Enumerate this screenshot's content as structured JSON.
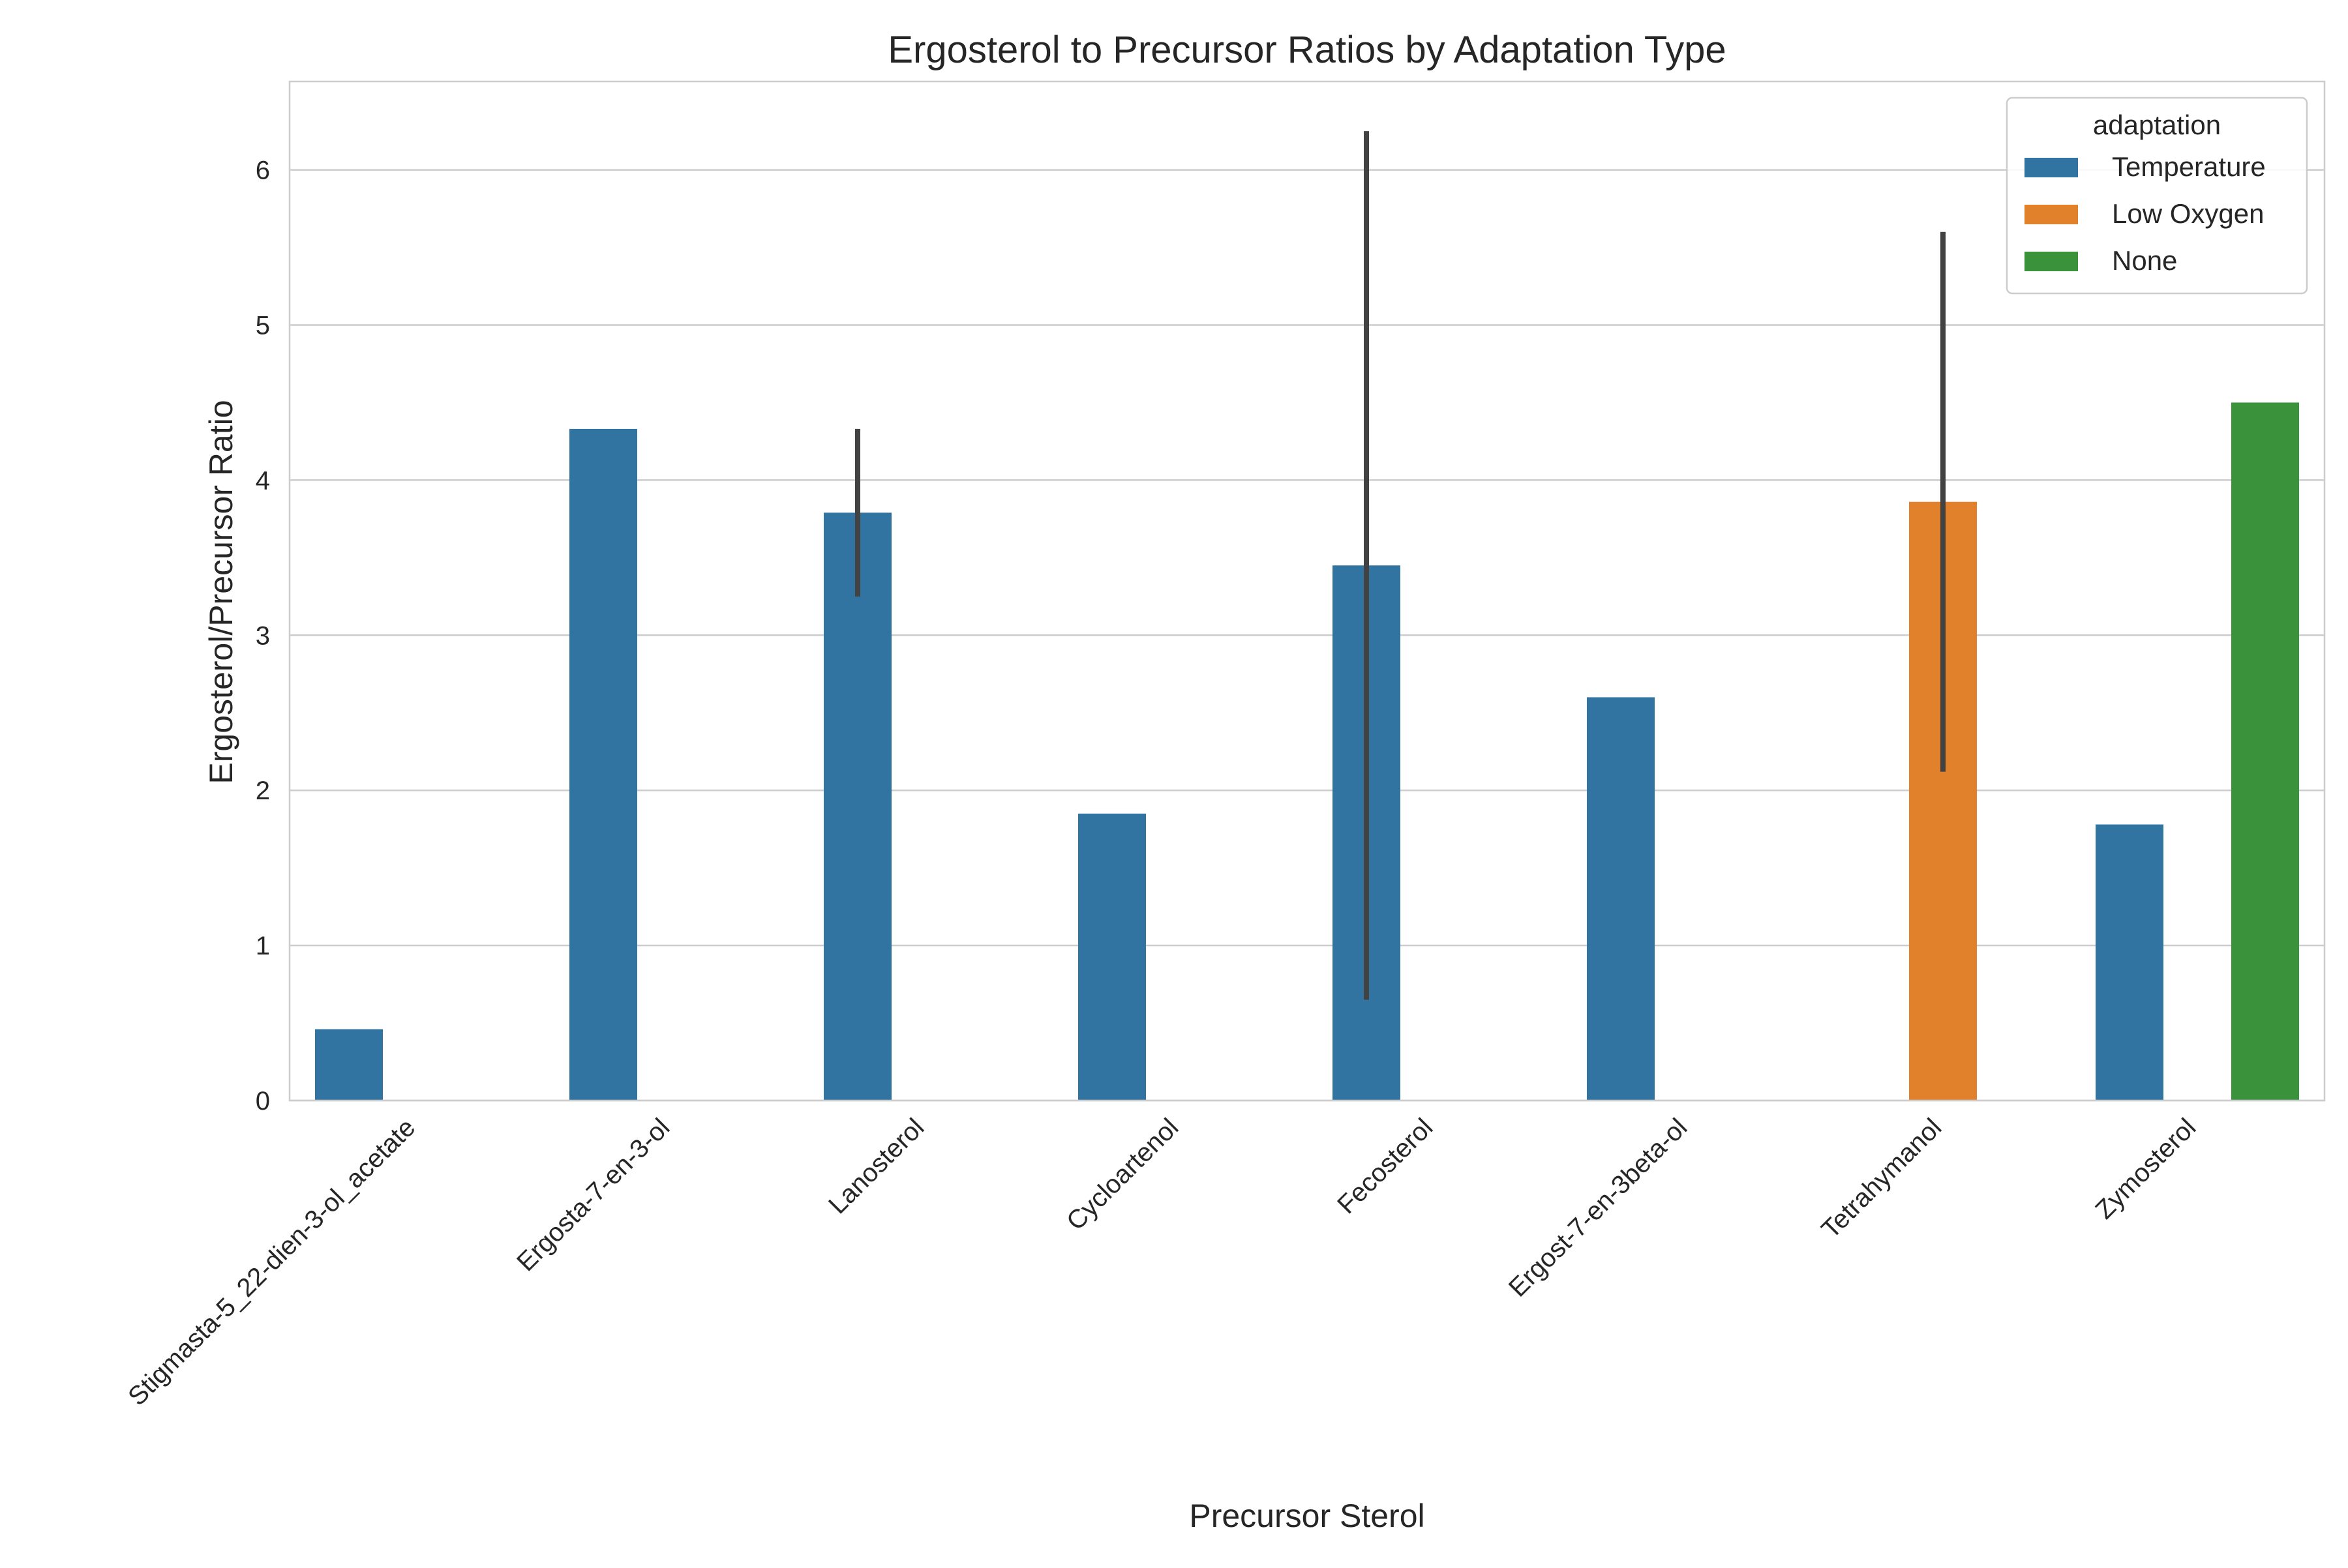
{
  "chart_data": {
    "type": "bar",
    "title": "Ergosterol to Precursor Ratios by Adaptation Type",
    "xlabel": "Precursor Sterol",
    "ylabel": "Ergosterol/Precursor Ratio",
    "ylim": [
      0,
      6.57
    ],
    "yticks": [
      "0",
      "1",
      "2",
      "3",
      "4",
      "5",
      "6"
    ],
    "grid": "horizontal",
    "legend_position": "top-right",
    "legend_title": "adaptation",
    "categories": [
      "Stigmasta-5_22-dien-3-ol_acetate",
      "Ergosta-7-en-3-ol",
      "Lanosterol",
      "Cycloartenol",
      "Fecosterol",
      "Ergost-7-en-3beta-ol",
      "Tetrahymanol",
      "Zymosterol"
    ],
    "series": [
      {
        "name": "Temperature",
        "color": "#3274a1",
        "values": [
          0.46,
          4.33,
          3.79,
          1.85,
          3.45,
          2.6,
          null,
          1.78
        ],
        "error_low": [
          null,
          null,
          3.25,
          null,
          0.65,
          null,
          null,
          null
        ],
        "error_high": [
          null,
          null,
          4.33,
          null,
          6.25,
          null,
          null,
          null
        ]
      },
      {
        "name": "Low Oxygen",
        "color": "#e1812c",
        "values": [
          null,
          null,
          null,
          null,
          null,
          null,
          3.86,
          null
        ],
        "error_low": [
          null,
          null,
          null,
          null,
          null,
          null,
          2.12,
          null
        ],
        "error_high": [
          null,
          null,
          null,
          null,
          null,
          null,
          5.6,
          null
        ]
      },
      {
        "name": "None",
        "color": "#3a923a",
        "values": [
          null,
          null,
          null,
          null,
          null,
          null,
          null,
          4.5
        ],
        "error_low": [
          null,
          null,
          null,
          null,
          null,
          null,
          null,
          null
        ],
        "error_high": [
          null,
          null,
          null,
          null,
          null,
          null,
          null,
          null
        ]
      }
    ],
    "error_bar_color": "#424242"
  }
}
